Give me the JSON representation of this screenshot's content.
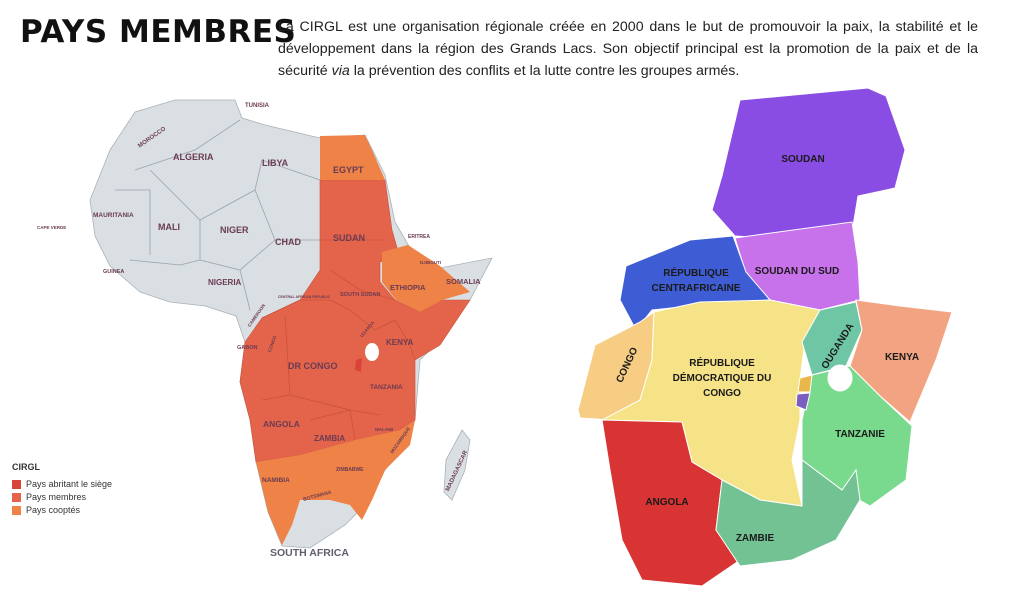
{
  "header": {
    "title": "PAYS MEMBRES",
    "description_before_italic": "La CIRGL est une organisation régionale créée en 2000 dans le but de promouvoir la paix, la stabilité et le développement dans la région des Grands Lacs. Son objectif principal est la promotion de la paix et de la sécurité ",
    "description_italic": "via",
    "description_after_italic": " la prévention des conflits et la lutte contre les groupes armés."
  },
  "colors": {
    "non_member": "#d9dfe3",
    "siege": "#d8433a",
    "membres": "#e4644b",
    "cooptes": "#ee8247"
  },
  "africa_map": {
    "labels": {
      "tunisia": "TUNISIA",
      "morocco": "MOROCCO",
      "algeria": "ALGERIA",
      "libya": "LIBYA",
      "egypt": "EGYPT",
      "mauritania": "MAURITANIA",
      "mali": "MALI",
      "niger": "NIGER",
      "chad": "CHAD",
      "sudan": "SUDAN",
      "cape_verde": "CAPE VERDE",
      "eritrea": "ERITREA",
      "djibouti": "DJIBOUTI",
      "somalia": "SOMALIA",
      "ethiopia": "ETHIOPIA",
      "south_sudan": "SOUTH SUDAN",
      "nigeria": "NIGERIA",
      "guinea": "GUINEA",
      "car": "CENTRAL AFRICAN REPUBLIC",
      "cameroon": "CAMEROON",
      "gabon": "GABON",
      "congo": "CONGO",
      "dr_congo": "DR CONGO",
      "uganda": "UGANDA",
      "kenya": "KENYA",
      "tanzania": "TANZANIA",
      "angola": "ANGOLA",
      "zambia": "ZAMBIA",
      "malawi": "MALAWI",
      "mozambique": "MOZAMBIQUE",
      "zimbabwe": "ZIMBABWE",
      "namibia": "NAMIBIA",
      "botswana": "BOTSWANA",
      "madagascar": "MADAGASCAR",
      "south_africa": "SOUTH AFRICA"
    },
    "legend": {
      "title": "CIRGL",
      "items": [
        "Pays abritant le siège",
        "Pays membres",
        "Pays cooptés"
      ]
    }
  },
  "region_map": {
    "labels": {
      "soudan": "SOUDAN",
      "rca_1": "RÉPUBLIQUE",
      "rca_2": "CENTRAFRICAINE",
      "soudan_du_sud": "SOUDAN DU SUD",
      "congo": "CONGO",
      "rdc_1": "RÉPUBLIQUE",
      "rdc_2": "DÉMOCRATIQUE DU",
      "rdc_3": "CONGO",
      "ouganda": "OUGANDA",
      "kenya": "KENYA",
      "tanzanie": "TANZANIE",
      "angola": "ANGOLA",
      "zambie": "ZAMBIE"
    },
    "colors": {
      "soudan": "#8a4de3",
      "soudan_du_sud": "#c772ea",
      "rca": "#3e5dd5",
      "congo": "#f6cd82",
      "rdc": "#f6e387",
      "ouganda": "#6ec6a4",
      "kenya": "#f2a482",
      "tanzanie": "#79d98c",
      "angola": "#d93434",
      "zambie": "#72c294",
      "rwanda": "#e8b84a",
      "burundi": "#7a5fc0"
    }
  }
}
